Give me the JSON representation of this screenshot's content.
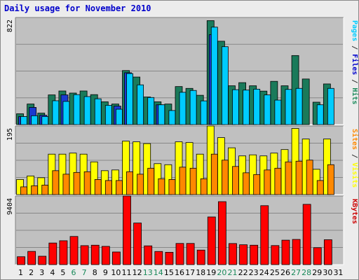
{
  "chart_data": {
    "type": "bar",
    "title": "Daily usage for November 2010",
    "categories": [
      "1",
      "2",
      "3",
      "4",
      "5",
      "6",
      "7",
      "8",
      "9",
      "10",
      "11",
      "12",
      "13",
      "14",
      "15",
      "16",
      "17",
      "18",
      "19",
      "20",
      "21",
      "22",
      "23",
      "24",
      "25",
      "26",
      "27",
      "28",
      "29",
      "30",
      "31"
    ],
    "weekend_day_color": "#1a8a5a",
    "weekend_days": [
      "6",
      "7",
      "13",
      "14",
      "20",
      "21",
      "27",
      "28"
    ],
    "panels": [
      {
        "name": "pages_files_hits",
        "ymax_label": "822",
        "ymax": 822,
        "right_label": [
          "Pages",
          " / ",
          "Files",
          " / ",
          "Hits"
        ],
        "right_label_colors": [
          "#00ccff",
          "#333333",
          "#0000cc",
          "#333333",
          "#1a8a5a"
        ],
        "series": [
          {
            "name": "Hits",
            "color": "#1a7a5a",
            "values": [
              83,
              158,
              88,
              228,
              258,
              242,
              258,
              230,
              175,
              158,
              415,
              365,
              212,
              175,
              158,
              292,
              278,
              225,
              798,
              640,
              298,
              322,
              298,
              257,
              332,
              298,
              530,
              350,
              172,
              312
            ]
          },
          {
            "name": "Files",
            "color": "#1a3ad0",
            "values": [
              62,
              132,
              72,
              0,
              228,
              0,
              0,
              0,
              0,
              142,
              398,
              0,
              0,
              152,
              0,
              0,
              0,
              0,
              690,
              0,
              0,
              0,
              0,
              0,
              0,
              0,
              0,
              0,
              0,
              0
            ]
          },
          {
            "name": "Pages",
            "color": "#00ccff",
            "values": [
              62,
              68,
              62,
              183,
              178,
              230,
              215,
              198,
              148,
              118,
              392,
              305,
              208,
              152,
              108,
              248,
              262,
              182,
              748,
              598,
              268,
              265,
              272,
              228,
              188,
              270,
              278,
              0,
              152,
              278
            ]
          }
        ]
      },
      {
        "name": "visits_sites",
        "ymax_label": "195",
        "ymax": 195,
        "right_label": [
          "Sites",
          " / ",
          "Visits"
        ],
        "right_label_colors": [
          "#ff8800",
          "#333333",
          "#ffff00"
        ],
        "series": [
          {
            "name": "Visits",
            "color": "#ffff00",
            "values": [
              43,
              53,
              48,
              115,
              115,
              118,
              115,
              93,
              68,
              70,
              152,
              150,
              145,
              88,
              85,
              150,
              148,
              115,
              195,
              162,
              133,
              110,
              113,
              110,
              118,
              128,
              188,
              158,
              72,
              158
            ]
          },
          {
            "name": "Sites",
            "color": "#ff8800",
            "values": [
              22,
              25,
              27,
              68,
              58,
              63,
              65,
              43,
              40,
              40,
              65,
              58,
              75,
              45,
              43,
              78,
              75,
              45,
              115,
              98,
              80,
              62,
              57,
              70,
              75,
              93,
              95,
              98,
              40,
              85
            ]
          }
        ]
      },
      {
        "name": "kbytes",
        "ymax_label": "9404",
        "ymax": 9404,
        "right_label": [
          "KBytes"
        ],
        "right_label_colors": [
          "#cc0000"
        ],
        "series": [
          {
            "name": "KBytes",
            "color": "#ff0000",
            "values": [
              1080,
              1810,
              1150,
              2960,
              3270,
              3860,
              2600,
              2660,
              2500,
              1730,
              9404,
              5700,
              2570,
              1800,
              1690,
              2900,
              2900,
              1990,
              6530,
              8630,
              2890,
              2720,
              2660,
              8080,
              2610,
              3350,
              3450,
              8260,
              2320,
              3410
            ]
          }
        ]
      }
    ]
  }
}
